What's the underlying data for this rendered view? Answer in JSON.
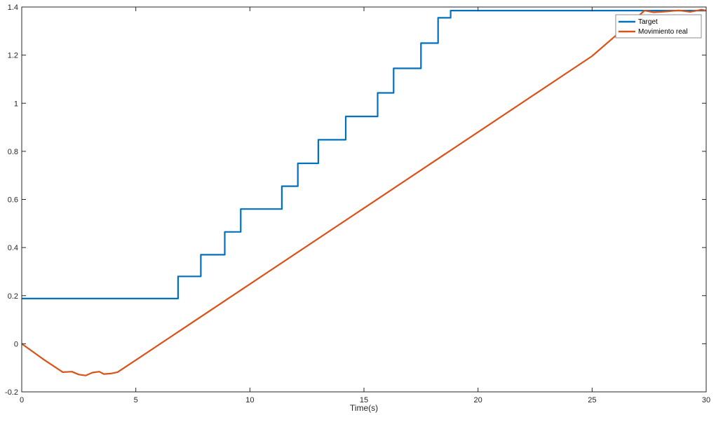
{
  "chart_data": {
    "type": "line",
    "title": "",
    "xlabel": "Time(s)",
    "ylabel": "",
    "xlim": [
      0,
      30
    ],
    "ylim": [
      -0.2,
      1.4
    ],
    "xticks": [
      0,
      5,
      10,
      15,
      20,
      25,
      30
    ],
    "xtick_labels": [
      "0",
      "5",
      "10",
      "15",
      "20",
      "25",
      "30"
    ],
    "yticks": [
      -0.2,
      0,
      0.2,
      0.4,
      0.6,
      0.8,
      1,
      1.2,
      1.4
    ],
    "ytick_labels": [
      "-0.2",
      "0",
      "0.2",
      "0.4",
      "0.6",
      "0.8",
      "1",
      "1.2",
      "1.4"
    ],
    "grid": false,
    "legend_position": "top-right",
    "series": [
      {
        "name": "Target",
        "color": "#0072BD",
        "step": true,
        "x": [
          0,
          6.85,
          7.85,
          8.9,
          9.6,
          11.4,
          12.1,
          13.0,
          14.2,
          15.6,
          16.3,
          17.5,
          18.25,
          18.8,
          30
        ],
        "y": [
          0.188,
          0.28,
          0.37,
          0.465,
          0.56,
          0.655,
          0.75,
          0.848,
          0.945,
          1.043,
          1.145,
          1.25,
          1.355,
          1.385,
          1.385
        ]
      },
      {
        "name": "Movimiento real",
        "color": "#D95319",
        "step": false,
        "x": [
          0,
          1.0,
          1.8,
          2.2,
          2.5,
          2.8,
          3.1,
          3.4,
          3.6,
          3.9,
          4.2,
          5.0,
          10.0,
          15.0,
          20.0,
          25.0,
          27.3,
          27.7,
          28.2,
          28.8,
          29.3,
          29.8,
          30
        ],
        "y": [
          0,
          -0.068,
          -0.118,
          -0.116,
          -0.128,
          -0.132,
          -0.12,
          -0.116,
          -0.126,
          -0.124,
          -0.118,
          -0.068,
          0.248,
          0.564,
          0.88,
          1.196,
          1.385,
          1.378,
          1.381,
          1.386,
          1.38,
          1.389,
          1.385
        ]
      }
    ]
  }
}
